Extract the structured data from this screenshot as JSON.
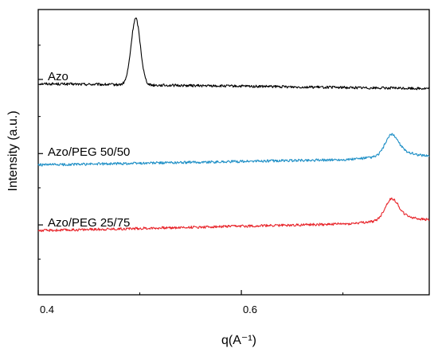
{
  "chart_data": {
    "type": "line",
    "title": "",
    "xlabel": "q(A⁻¹)",
    "ylabel": "Intensity (a.u.)",
    "xlim": [
      0.4,
      0.785
    ],
    "ylim": [
      0,
      1
    ],
    "xticks": [
      0.4,
      0.6
    ],
    "xtick_labels": [
      "0.4",
      "0.6"
    ],
    "y_tick_labels_shown": false,
    "grid": false,
    "series": [
      {
        "name": "Azo",
        "color": "#000000",
        "baseline_start": 0.74,
        "baseline_end": 0.723,
        "peaks": [
          {
            "center": 0.496,
            "height": 0.233,
            "width": 0.0045
          }
        ]
      },
      {
        "name": "Azo/PEG 50/50",
        "color": "#1e8fc6",
        "baseline_start": 0.455,
        "baseline_end": 0.479,
        "shoulder_start": 0.705,
        "peaks": [
          {
            "center": 0.748,
            "height": 0.073,
            "width": 0.0065
          },
          {
            "center": 0.762,
            "height": 0.012,
            "width": 0.009
          }
        ]
      },
      {
        "name": "Azo/PEG 25/75",
        "color": "#e8242a",
        "baseline_start": 0.225,
        "baseline_end": 0.255,
        "shoulder_start": 0.705,
        "peaks": [
          {
            "center": 0.748,
            "height": 0.073,
            "width": 0.0065
          },
          {
            "center": 0.762,
            "height": 0.012,
            "width": 0.009
          }
        ]
      }
    ]
  }
}
